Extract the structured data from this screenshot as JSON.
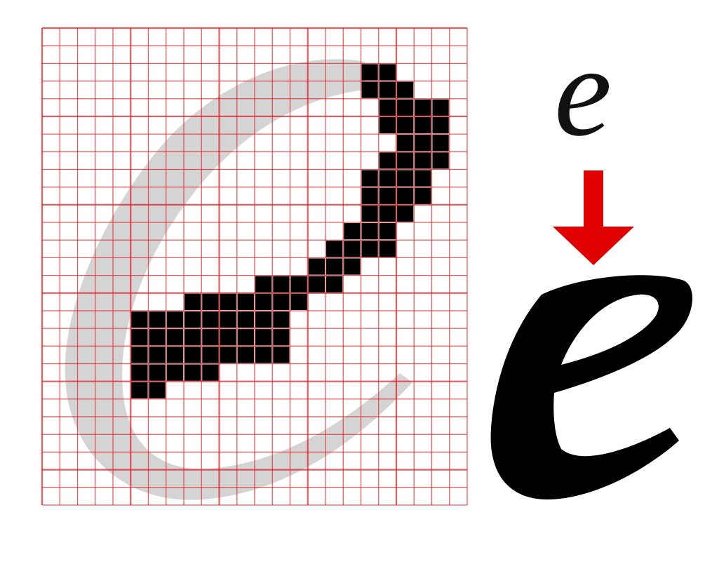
{
  "glyph": {
    "letter": "e"
  },
  "colors": {
    "grid_line": "#e0262a",
    "outline_shape": "#cfcfcf",
    "filled_pixel": "#000000",
    "arrow": "#e00000",
    "rendered_glyph": "#000000"
  },
  "arrow": {
    "direction": "down",
    "icon": "arrow-down-icon"
  },
  "grid": {
    "columns": 24,
    "rows": 27
  }
}
